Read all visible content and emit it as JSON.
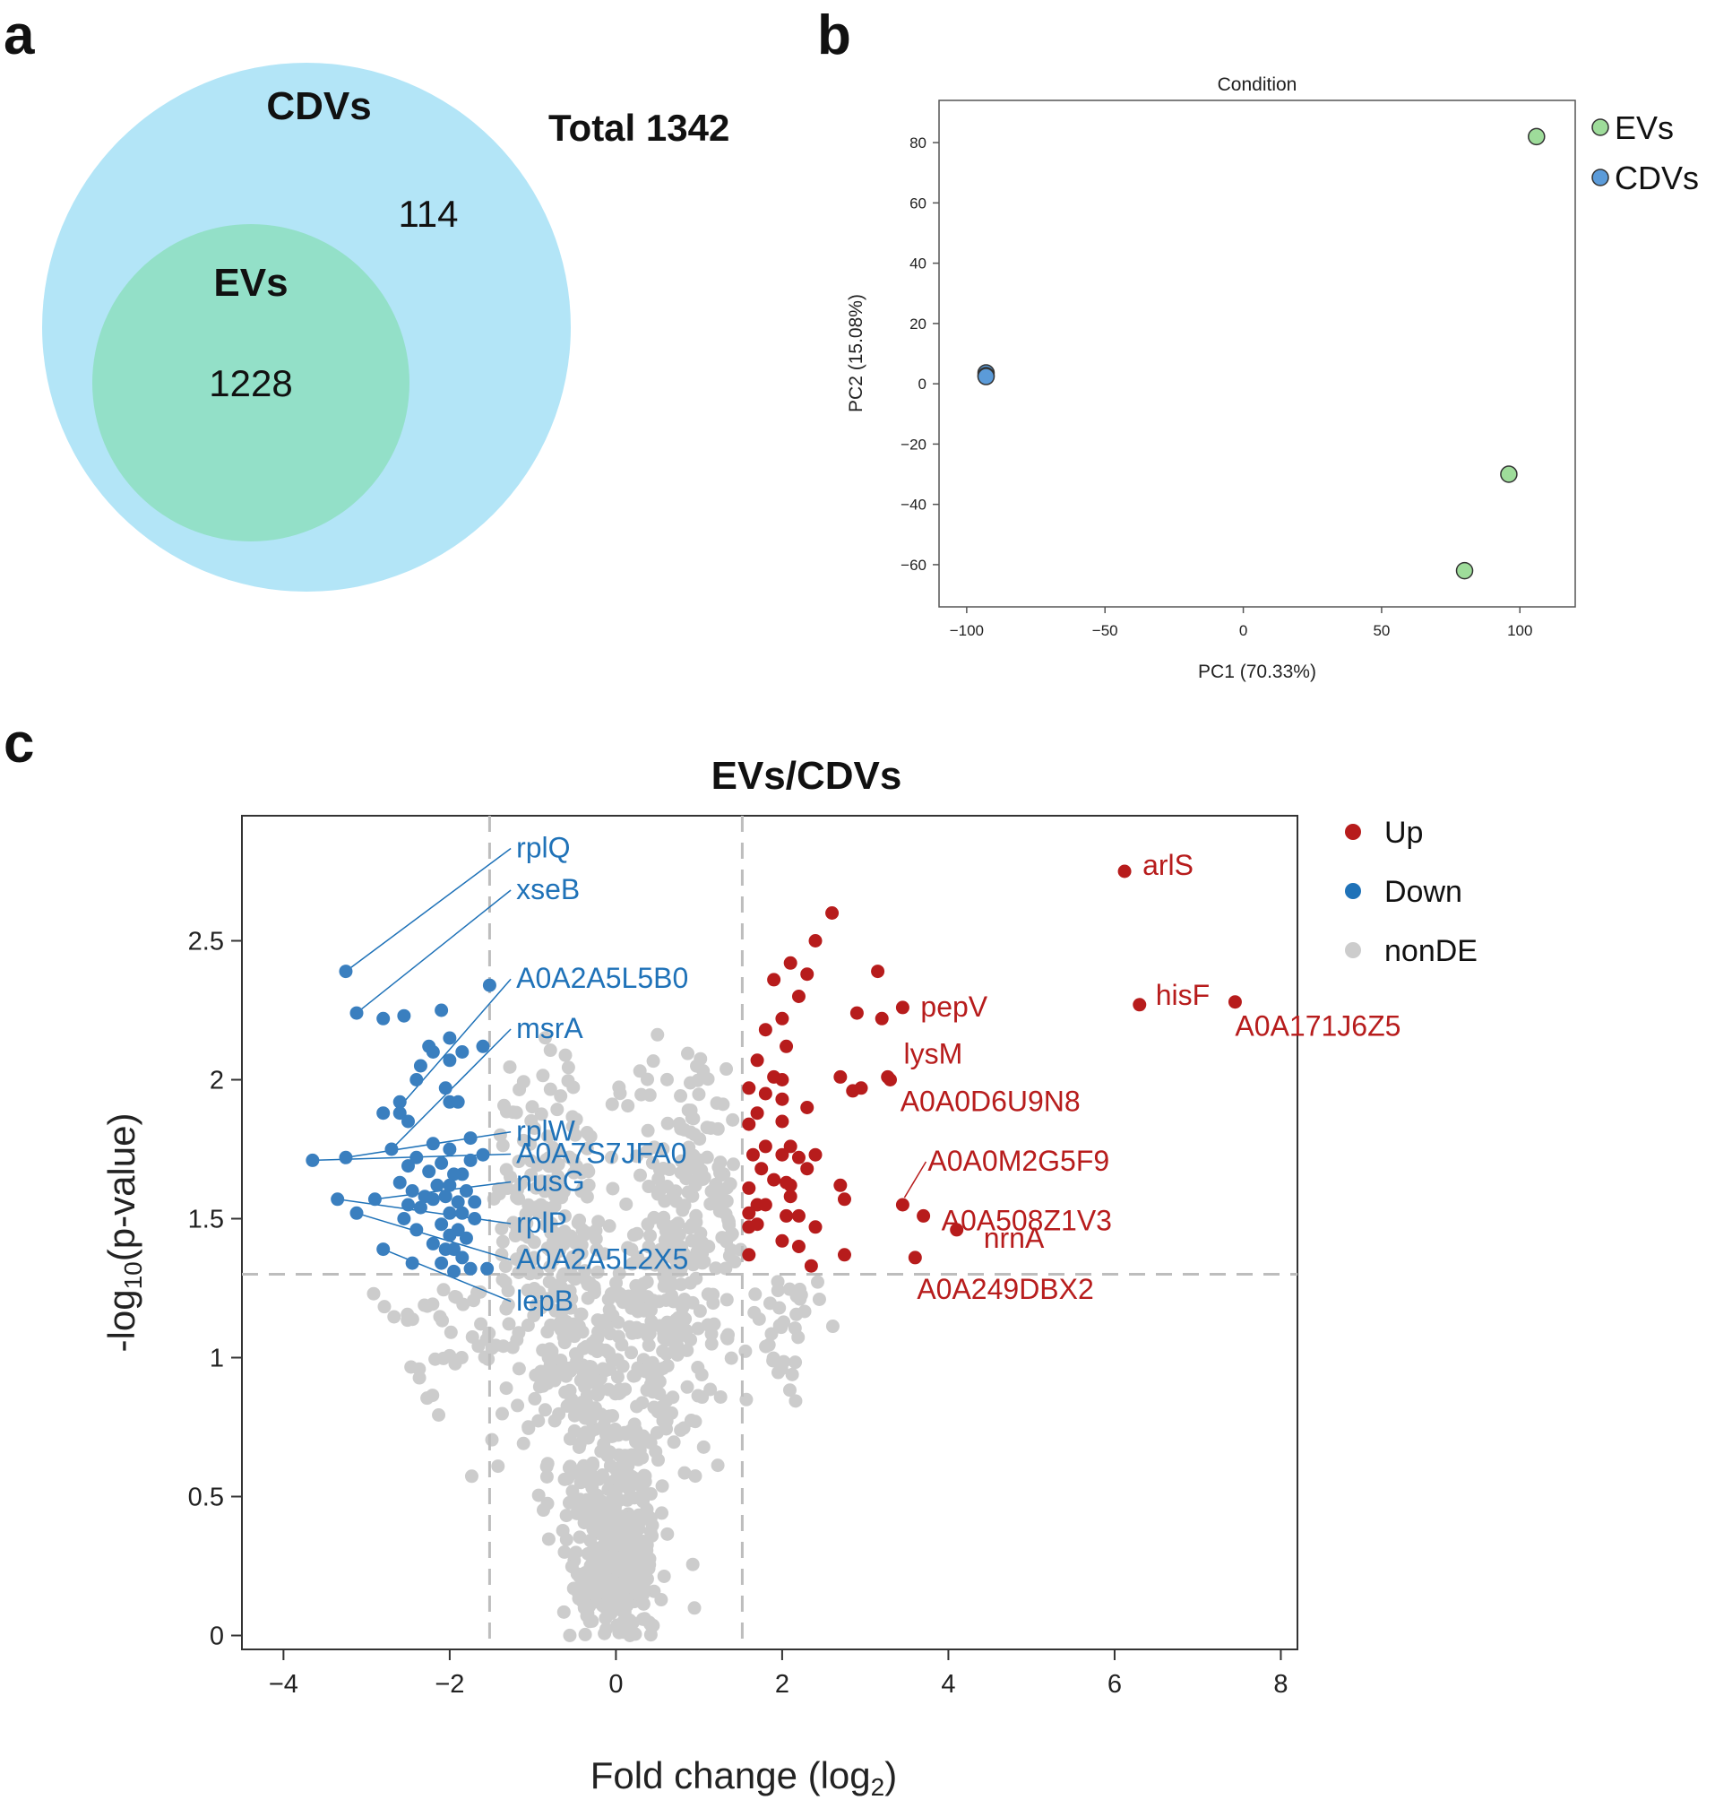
{
  "panel_labels": {
    "a": "a",
    "b": "b",
    "c": "c"
  },
  "colors": {
    "cdv_circle": "#b3e5f7",
    "ev_circle": "#93e0c8",
    "pca_ev": "#9edc9a",
    "pca_cdv": "#5b9bd9",
    "up": "#b71c1c",
    "down": "#3a7fbf",
    "nonde": "#cccccc",
    "label_down": "#1f72b8"
  },
  "chart_data": [
    {
      "type": "venn",
      "sets": [
        {
          "name": "CDVs",
          "only_count": "114"
        },
        {
          "name": "EVs",
          "count": "1228"
        }
      ],
      "total_label": "Total 1342"
    },
    {
      "type": "scatter",
      "title": "Condition",
      "xlabel": "PC1 (70.33%)",
      "ylabel": "PC2 (15.08%)",
      "xlim": [
        -110,
        120
      ],
      "ylim": [
        -74,
        94
      ],
      "xticks": [
        -100,
        -50,
        0,
        50,
        100
      ],
      "yticks": [
        -60,
        -40,
        -20,
        0,
        20,
        40,
        60,
        80
      ],
      "xtick_labels": [
        "−100",
        "−50",
        "0",
        "50",
        "100"
      ],
      "ytick_labels": [
        "−60",
        "−40",
        "−20",
        "0",
        "20",
        "40",
        "60",
        "80"
      ],
      "legend": [
        "EVs",
        "CDVs"
      ],
      "series": [
        {
          "name": "EVs",
          "points": [
            [
              106,
              82
            ],
            [
              96,
              -30
            ],
            [
              80,
              -62
            ]
          ]
        },
        {
          "name": "CDVs",
          "points": [
            [
              -93,
              3.6
            ],
            [
              -93,
              2.7
            ],
            [
              -93,
              2.4
            ]
          ]
        }
      ]
    },
    {
      "type": "scatter",
      "title": "EVs/CDVs",
      "xlabel": "Fold change (log",
      "xlabel_sub": "2",
      "xlabel_end": ")",
      "ylabel": "-log",
      "ylabel_sub": "10",
      "ylabel_end": "(p-value)",
      "xlim": [
        -4.5,
        8.2
      ],
      "ylim": [
        -0.05,
        2.95
      ],
      "xticks": [
        -4,
        -2,
        0,
        2,
        4,
        6,
        8
      ],
      "yticks": [
        0,
        0.5,
        1,
        1.5,
        2,
        2.5
      ],
      "xtick_labels": [
        "−4",
        "−2",
        "0",
        "2",
        "4",
        "6",
        "8"
      ],
      "ytick_labels": [
        "0",
        "0.5",
        "1",
        "1.5",
        "2",
        "2.5"
      ],
      "thresholds": {
        "fc": [
          -1.52,
          1.52
        ],
        "p": 1.3
      },
      "legend": [
        "Up",
        "Down",
        "nonDE"
      ],
      "up_points": [
        [
          6.12,
          2.75
        ],
        [
          6.3,
          2.27
        ],
        [
          7.45,
          2.28
        ],
        [
          3.45,
          2.26
        ],
        [
          3.15,
          2.39
        ],
        [
          2.9,
          2.24
        ],
        [
          3.2,
          2.22
        ],
        [
          3.27,
          2.01
        ],
        [
          3.3,
          2.0
        ],
        [
          2.7,
          2.01
        ],
        [
          2.85,
          1.96
        ],
        [
          2.95,
          1.97
        ],
        [
          3.45,
          1.55
        ],
        [
          3.7,
          1.51
        ],
        [
          4.1,
          1.46
        ],
        [
          3.6,
          1.36
        ],
        [
          2.6,
          2.6
        ],
        [
          2.4,
          2.5
        ],
        [
          2.1,
          2.42
        ],
        [
          2.3,
          2.38
        ],
        [
          1.9,
          2.36
        ],
        [
          2.2,
          2.3
        ],
        [
          2.0,
          2.22
        ],
        [
          1.8,
          2.18
        ],
        [
          2.05,
          2.12
        ],
        [
          1.7,
          2.07
        ],
        [
          1.9,
          2.01
        ],
        [
          2.0,
          2.0
        ],
        [
          1.8,
          1.95
        ],
        [
          1.6,
          1.97
        ],
        [
          2.0,
          1.93
        ],
        [
          2.3,
          1.9
        ],
        [
          1.7,
          1.88
        ],
        [
          2.0,
          1.85
        ],
        [
          1.6,
          1.84
        ],
        [
          1.8,
          1.76
        ],
        [
          2.1,
          1.76
        ],
        [
          2.2,
          1.72
        ],
        [
          1.65,
          1.73
        ],
        [
          2.0,
          1.73
        ],
        [
          2.4,
          1.73
        ],
        [
          1.75,
          1.68
        ],
        [
          2.3,
          1.68
        ],
        [
          1.9,
          1.64
        ],
        [
          2.05,
          1.63
        ],
        [
          2.1,
          1.62
        ],
        [
          1.6,
          1.61
        ],
        [
          2.7,
          1.62
        ],
        [
          2.1,
          1.58
        ],
        [
          2.75,
          1.57
        ],
        [
          1.7,
          1.55
        ],
        [
          1.8,
          1.55
        ],
        [
          1.6,
          1.52
        ],
        [
          2.05,
          1.51
        ],
        [
          1.7,
          1.48
        ],
        [
          2.2,
          1.51
        ],
        [
          2.4,
          1.47
        ],
        [
          1.6,
          1.47
        ],
        [
          2.0,
          1.42
        ],
        [
          2.2,
          1.4
        ],
        [
          1.6,
          1.37
        ],
        [
          2.75,
          1.37
        ],
        [
          2.35,
          1.33
        ]
      ],
      "down_points": [
        [
          -3.25,
          2.39
        ],
        [
          -3.12,
          2.24
        ],
        [
          -1.52,
          2.34
        ],
        [
          -2.55,
          2.23
        ],
        [
          -2.8,
          2.22
        ],
        [
          -2.1,
          2.25
        ],
        [
          -2.0,
          2.15
        ],
        [
          -2.25,
          2.12
        ],
        [
          -2.2,
          2.1
        ],
        [
          -1.6,
          2.12
        ],
        [
          -1.85,
          2.1
        ],
        [
          -2.0,
          2.07
        ],
        [
          -2.35,
          2.05
        ],
        [
          -2.4,
          2.0
        ],
        [
          -2.05,
          1.97
        ],
        [
          -2.6,
          1.92
        ],
        [
          -2.0,
          1.92
        ],
        [
          -1.9,
          1.92
        ],
        [
          -2.8,
          1.88
        ],
        [
          -2.6,
          1.88
        ],
        [
          -2.5,
          1.85
        ],
        [
          -2.7,
          1.75
        ],
        [
          -1.75,
          1.79
        ],
        [
          -2.2,
          1.77
        ],
        [
          -2.0,
          1.75
        ],
        [
          -3.25,
          1.72
        ],
        [
          -1.6,
          1.73
        ],
        [
          -2.4,
          1.72
        ],
        [
          -2.1,
          1.7
        ],
        [
          -1.75,
          1.71
        ],
        [
          -3.65,
          1.71
        ],
        [
          -2.5,
          1.69
        ],
        [
          -2.25,
          1.67
        ],
        [
          -1.85,
          1.66
        ],
        [
          -1.95,
          1.66
        ],
        [
          -2.6,
          1.63
        ],
        [
          -2.15,
          1.62
        ],
        [
          -2.0,
          1.62
        ],
        [
          -1.8,
          1.6
        ],
        [
          -2.45,
          1.6
        ],
        [
          -2.3,
          1.58
        ],
        [
          -2.2,
          1.57
        ],
        [
          -2.05,
          1.58
        ],
        [
          -1.9,
          1.56
        ],
        [
          -1.7,
          1.56
        ],
        [
          -3.35,
          1.57
        ],
        [
          -2.9,
          1.57
        ],
        [
          -2.5,
          1.55
        ],
        [
          -2.35,
          1.54
        ],
        [
          -2.0,
          1.52
        ],
        [
          -1.85,
          1.52
        ],
        [
          -1.7,
          1.5
        ],
        [
          -3.12,
          1.52
        ],
        [
          -2.55,
          1.5
        ],
        [
          -2.1,
          1.48
        ],
        [
          -1.9,
          1.46
        ],
        [
          -2.4,
          1.46
        ],
        [
          -2.0,
          1.44
        ],
        [
          -1.8,
          1.43
        ],
        [
          -2.2,
          1.41
        ],
        [
          -2.05,
          1.39
        ],
        [
          -1.95,
          1.39
        ],
        [
          -2.8,
          1.39
        ],
        [
          -1.85,
          1.36
        ],
        [
          -2.45,
          1.34
        ],
        [
          -2.1,
          1.34
        ],
        [
          -1.95,
          1.31
        ],
        [
          -1.75,
          1.32
        ],
        [
          -1.55,
          1.32
        ]
      ],
      "nonde_sample_seed": 20240611,
      "nonde_clusters": [
        {
          "n": 380,
          "x_mean": 0.0,
          "x_sd": 0.18,
          "y_mean": 0.12,
          "y_sd": 0.12
        },
        {
          "n": 320,
          "x_mean": 0.0,
          "x_sd": 0.32,
          "y_mean": 0.55,
          "y_sd": 0.35
        },
        {
          "n": 220,
          "x_mean": -0.65,
          "x_sd": 0.38,
          "y_mean": 1.25,
          "y_sd": 0.35
        },
        {
          "n": 220,
          "x_mean": 0.65,
          "x_sd": 0.38,
          "y_mean": 1.25,
          "y_sd": 0.35
        },
        {
          "n": 70,
          "x_mean": -1.1,
          "x_sd": 0.35,
          "y_mean": 1.6,
          "y_sd": 0.4
        },
        {
          "n": 70,
          "x_mean": 1.05,
          "x_sd": 0.35,
          "y_mean": 1.6,
          "y_sd": 0.3
        },
        {
          "n": 45,
          "x_mean": -1.9,
          "x_sd": 0.55,
          "y_mean": 1.15,
          "y_sd": 0.18
        },
        {
          "n": 40,
          "x_mean": 1.9,
          "x_sd": 0.45,
          "y_mean": 1.1,
          "y_sd": 0.15
        }
      ],
      "down_labels": [
        {
          "name": "rplQ",
          "point": [
            -3.25,
            2.39
          ],
          "text_at": [
            -1.2,
            2.8
          ]
        },
        {
          "name": "xseB",
          "point": [
            -3.12,
            2.24
          ],
          "text_at": [
            -1.2,
            2.65
          ]
        },
        {
          "name": "A0A2A5L5B0",
          "point": [
            -2.55,
            1.92
          ],
          "text_at": [
            -1.2,
            2.33
          ]
        },
        {
          "name": "msrA",
          "point": [
            -2.7,
            1.75
          ],
          "text_at": [
            -1.2,
            2.15
          ]
        },
        {
          "name": "rplW",
          "point": [
            -3.25,
            1.72
          ],
          "text_at": [
            -1.2,
            1.78
          ]
        },
        {
          "name": "A0A7S7JFA0",
          "point": [
            -3.65,
            1.71
          ],
          "text_at": [
            -1.2,
            1.7
          ]
        },
        {
          "name": "nusG",
          "point": [
            -2.9,
            1.57
          ],
          "text_at": [
            -1.2,
            1.6
          ]
        },
        {
          "name": "rplP",
          "point": [
            -3.35,
            1.57
          ],
          "text_at": [
            -1.2,
            1.45
          ]
        },
        {
          "name": "A0A2A5L2X5",
          "point": [
            -3.12,
            1.52
          ],
          "text_at": [
            -1.2,
            1.32
          ]
        },
        {
          "name": "lepB",
          "point": [
            -2.8,
            1.39
          ],
          "text_at": [
            -1.2,
            1.17
          ]
        }
      ],
      "up_labels": [
        {
          "name": "arlS",
          "point": [
            6.12,
            2.75
          ]
        },
        {
          "name": "hisF",
          "point": [
            6.3,
            2.27
          ]
        },
        {
          "name": "A0A171J6Z5",
          "point": [
            7.45,
            2.28
          ]
        },
        {
          "name": "pepV",
          "point": [
            3.45,
            2.26
          ]
        },
        {
          "name": "lysM",
          "point": [
            3.3,
            2.0
          ]
        },
        {
          "name": "A0A0D6U9N8",
          "point": [
            3.27,
            2.01
          ]
        },
        {
          "name": "A0A0M2G5F9",
          "point": [
            3.45,
            1.55
          ]
        },
        {
          "name": "A0A508Z1V3",
          "point": [
            3.7,
            1.51
          ]
        },
        {
          "name": "nrnA",
          "point": [
            4.1,
            1.46
          ]
        },
        {
          "name": "A0A249DBX2",
          "point": [
            3.6,
            1.36
          ]
        }
      ]
    }
  ]
}
